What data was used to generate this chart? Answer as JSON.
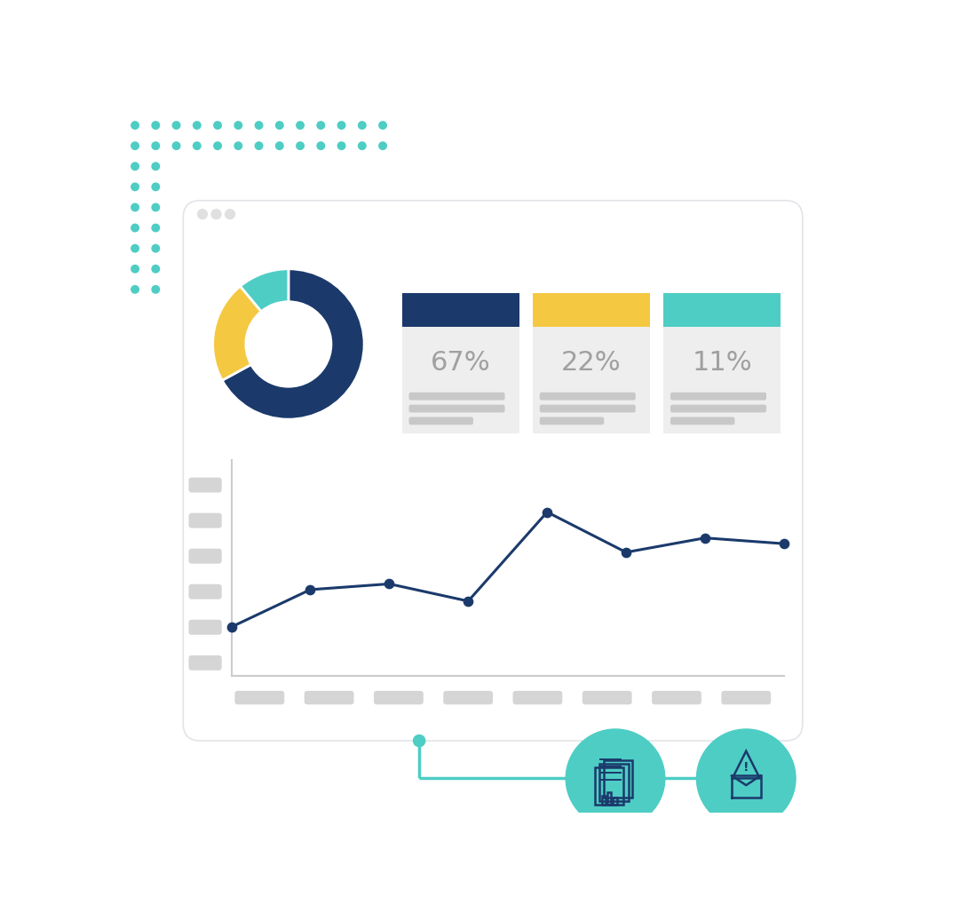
{
  "bg_color": "#ffffff",
  "dot_color": "#4ecdc4",
  "browser_bg": "#ffffff",
  "browser_border": "#e2e4e8",
  "donut_segments": [
    [
      67,
      "#1b3a6b"
    ],
    [
      22,
      "#f5c842"
    ],
    [
      11,
      "#4ecdc4"
    ]
  ],
  "card_colors": [
    "#1b3a6b",
    "#f5c842",
    "#4ecdc4"
  ],
  "card_labels": [
    "67%",
    "22%",
    "11%"
  ],
  "card_bg": "#eeeeee",
  "line_x": [
    0,
    1,
    2,
    3,
    4,
    5,
    6,
    7
  ],
  "line_y": [
    3.2,
    4.5,
    4.7,
    4.1,
    7.2,
    5.8,
    6.3,
    6.1
  ],
  "line_color": "#1b3a6b",
  "line_width": 2.2,
  "marker_size": 55,
  "axis_bar_color": "#d5d5d5",
  "teal_circle_color": "#4ecdc4",
  "icon_color": "#1b3a6b",
  "connector_color": "#4ecdc4"
}
